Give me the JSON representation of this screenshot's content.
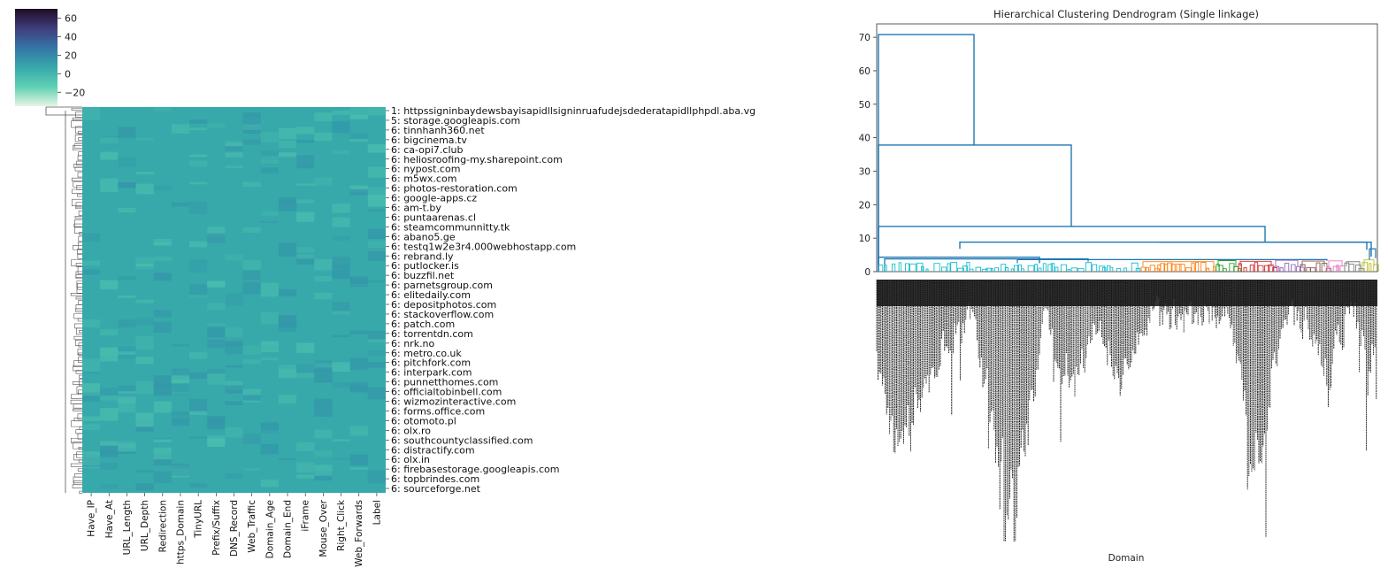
{
  "chart_data": [
    {
      "type": "heatmap",
      "title": "",
      "colorbar": {
        "ticks": [
          60,
          40,
          20,
          0,
          -20
        ],
        "tick_labels": [
          "60",
          "40",
          "20",
          "0",
          "−20"
        ],
        "range": [
          -35,
          70
        ],
        "colors": [
          "#e6f5e6",
          "#5fd0b2",
          "#36a8ab",
          "#3575a6",
          "#403d7c",
          "#1d0c23"
        ]
      },
      "columns": [
        "Have_IP",
        "Have_At",
        "URL_Length",
        "URL_Depth",
        "Redirection",
        "https_Domain",
        "TinyURL",
        "Prefix/Suffix",
        "DNS_Record",
        "Web_Traffic",
        "Domain_Age",
        "Domain_End",
        "iFrame",
        "Mouse_Over",
        "Right_Click",
        "Web_Forwards",
        "Label"
      ],
      "row_labels": [
        "1: httpssigninbaydewsbayisapidllsigninruafudejsdederatapidllphpdl.aba.vg",
        "5: storage.googleapis.com",
        "6: tinnhanh360.net",
        "6: bigcinema.tv",
        "6: ca-opi7.club",
        "6: heliosroofing-my.sharepoint.com",
        "6: nypost.com",
        "6: m5wx.com",
        "6: photos-restoration.com",
        "6: google-apps.cz",
        "6: am-t.by",
        "6: puntaarenas.cl",
        "6: steamcommunnitty.tk",
        "6: abano5.ge",
        "6: testq1w2e3r4.000webhostapp.com",
        "6: rebrand.ly",
        "6: putlocker.is",
        "6: buzzfil.net",
        "6: parnetsgroup.com",
        "6: elitedaily.com",
        "6: depositphotos.com",
        "6: stackoverflow.com",
        "6: patch.com",
        "6: torrentdn.com",
        "6: nrk.no",
        "6: metro.co.uk",
        "6: pitchfork.com",
        "6: interpark.com",
        "6: punnetthomes.com",
        "6: officialtobinbell.com",
        "6: wizmozinteractive.com",
        "6: forms.office.com",
        "6: otomoto.pl",
        "6: olx.ro",
        "6: southcountyclassified.com",
        "6: distractify.com",
        "6: olx.in",
        "6: firebasestorage.googleapis.com",
        "6: topbrindes.com",
        "6: sourceforge.net"
      ],
      "base_value": 0,
      "colors": {
        "base_cell": "#37a9ab",
        "light_cell": "#49bcae",
        "dark_cell": "#3397a8",
        "dendrogram": "#555555"
      }
    },
    {
      "type": "dendrogram",
      "title": "Hierarchical Clustering Dendrogram (Single linkage)",
      "xlabel": "Domain",
      "ylabel": "",
      "yticks": [
        0,
        10,
        20,
        30,
        40,
        50,
        60,
        70
      ],
      "ylim": [
        0,
        74
      ],
      "merge_heights": [
        70.8,
        37.8,
        13.5,
        8.8,
        6.8,
        4.3,
        3.8
      ],
      "colors": {
        "link": "#1f77b4",
        "clusters": [
          "#17becf",
          "#ff7f0e",
          "#2ca02c",
          "#d62728",
          "#9467bd",
          "#8c564b",
          "#e377c2",
          "#7f7f7f",
          "#bcbd22"
        ]
      }
    }
  ]
}
